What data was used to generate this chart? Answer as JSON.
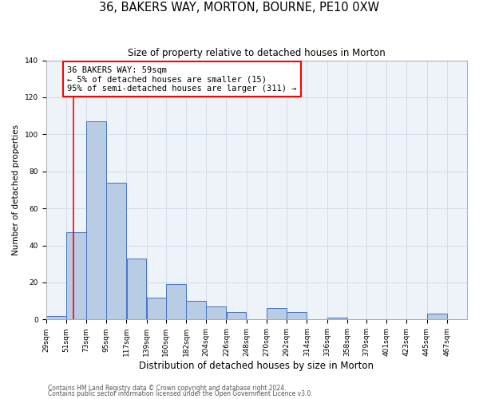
{
  "title": "36, BAKERS WAY, MORTON, BOURNE, PE10 0XW",
  "subtitle": "Size of property relative to detached houses in Morton",
  "xlabel": "Distribution of detached houses by size in Morton",
  "ylabel": "Number of detached properties",
  "bin_labels": [
    "29sqm",
    "51sqm",
    "73sqm",
    "95sqm",
    "117sqm",
    "139sqm",
    "160sqm",
    "182sqm",
    "204sqm",
    "226sqm",
    "248sqm",
    "270sqm",
    "292sqm",
    "314sqm",
    "336sqm",
    "358sqm",
    "379sqm",
    "401sqm",
    "423sqm",
    "445sqm",
    "467sqm"
  ],
  "bin_edges": [
    29,
    51,
    73,
    95,
    117,
    139,
    160,
    182,
    204,
    226,
    248,
    270,
    292,
    314,
    336,
    358,
    379,
    401,
    423,
    445,
    467
  ],
  "bar_heights": [
    2,
    47,
    107,
    74,
    33,
    12,
    19,
    10,
    7,
    4,
    0,
    6,
    4,
    0,
    1,
    0,
    0,
    0,
    0,
    3
  ],
  "bar_color": "#b8cce4",
  "bar_edgecolor": "#4472c4",
  "bar_linewidth": 0.7,
  "grid_color": "#d0d8e8",
  "background_color": "#eef2f9",
  "ylim": [
    0,
    140
  ],
  "yticks": [
    0,
    20,
    40,
    60,
    80,
    100,
    120,
    140
  ],
  "red_line_x": 59,
  "annotation_text": "36 BAKERS WAY: 59sqm\n← 5% of detached houses are smaller (15)\n95% of semi-detached houses are larger (311) →",
  "annotation_fontsize": 7.5,
  "footnote1": "Contains HM Land Registry data © Crown copyright and database right 2024.",
  "footnote2": "Contains public sector information licensed under the Open Government Licence v3.0.",
  "title_fontsize": 10.5,
  "subtitle_fontsize": 8.5,
  "xlabel_fontsize": 8.5,
  "ylabel_fontsize": 7.5,
  "tick_fontsize": 6.5,
  "footnote_fontsize": 5.5
}
